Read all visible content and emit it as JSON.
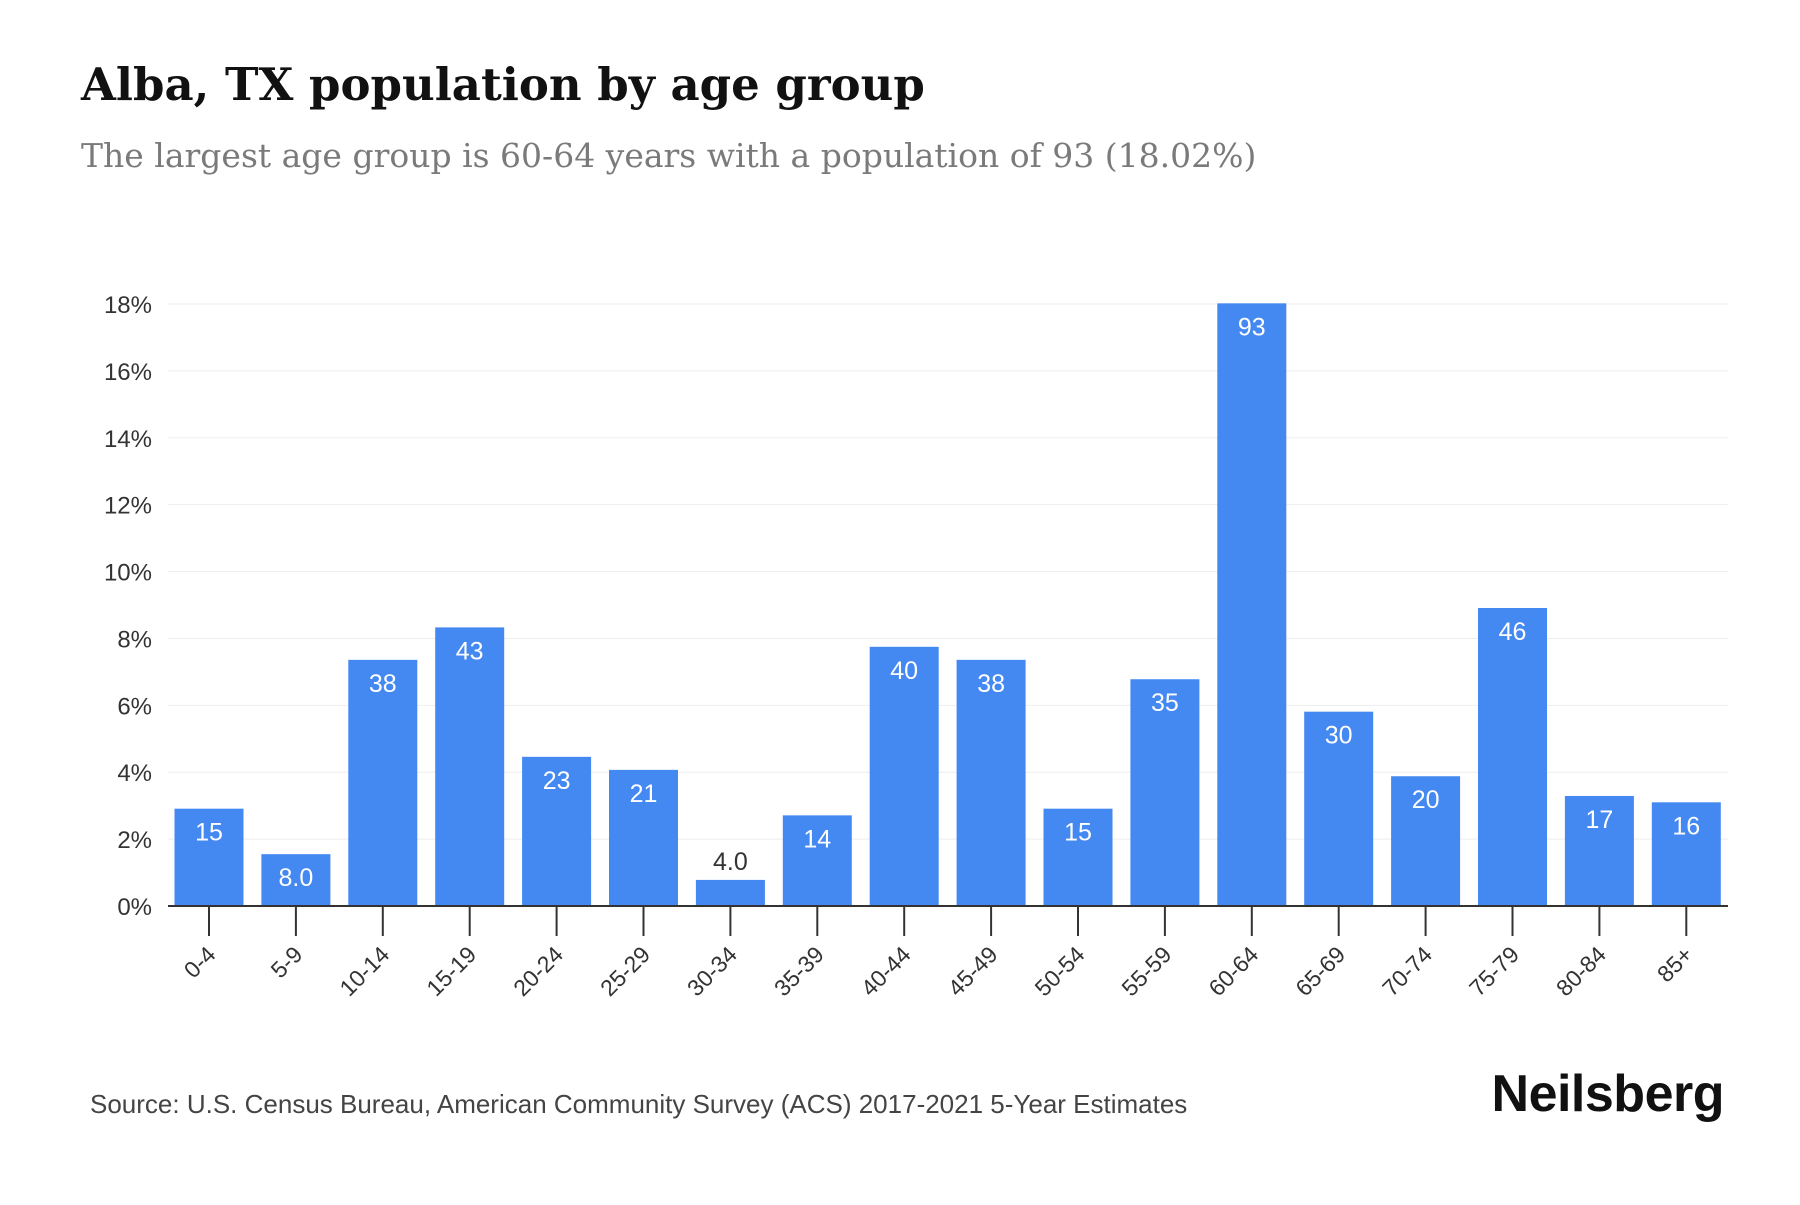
{
  "colors": {
    "bar": "#4488f2",
    "grid": "#eeeeee",
    "axis": "#333333",
    "tick_text": "#333333",
    "label_inside": "#ffffff",
    "label_outside": "#333333"
  },
  "header": {
    "title": "Alba, TX population by age group",
    "subtitle": "The largest age group is 60-64 years with a population of 93 (18.02%)"
  },
  "footer": {
    "source": "Source: U.S. Census Bureau, American Community Survey (ACS) 2017-2021 5-Year Estimates",
    "brand": "Neilsberg"
  },
  "chart_data": {
    "type": "bar",
    "title": "Alba, TX population by age group",
    "subtitle": "The largest age group is 60-64 years with a population of 93 (18.02%)",
    "xlabel": "",
    "ylabel": "",
    "ylim": [
      0,
      18
    ],
    "yticks": [
      0,
      2,
      4,
      6,
      8,
      10,
      12,
      14,
      16,
      18
    ],
    "ytick_labels": [
      "0%",
      "2%",
      "4%",
      "6%",
      "8%",
      "10%",
      "12%",
      "14%",
      "16%",
      "18%"
    ],
    "grid": true,
    "legend": "none",
    "categories": [
      "0-4",
      "5-9",
      "10-14",
      "15-19",
      "20-24",
      "25-29",
      "30-34",
      "35-39",
      "40-44",
      "45-49",
      "50-54",
      "55-59",
      "60-64",
      "65-69",
      "70-74",
      "75-79",
      "80-84",
      "85+"
    ],
    "values": [
      2.91,
      1.55,
      7.36,
      8.33,
      4.46,
      4.07,
      0.78,
      2.71,
      7.75,
      7.36,
      2.91,
      6.78,
      18.02,
      5.81,
      3.88,
      8.91,
      3.29,
      3.1
    ],
    "data_labels": [
      "15",
      "8.0",
      "38",
      "43",
      "23",
      "21",
      "4.0",
      "14",
      "40",
      "38",
      "15",
      "35",
      "93",
      "30",
      "20",
      "46",
      "17",
      "16"
    ]
  }
}
